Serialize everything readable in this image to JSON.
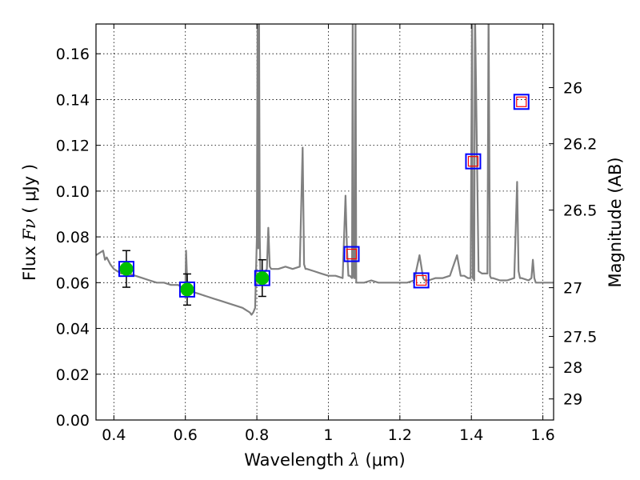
{
  "chart_data": {
    "type": "scatter",
    "xlabel": {
      "prefix": "Wavelength  ",
      "symbol": "λ",
      "suffix": " (μm)"
    },
    "ylabel": {
      "prefix": "Flux  ",
      "symbol": "Fν",
      "suffix": "  ( μJy )"
    },
    "y2label": "Magnitude (AB)",
    "xlim": [
      0.35,
      1.63
    ],
    "ylim": [
      0.0,
      0.173
    ],
    "grid": true,
    "x_ticks": [
      {
        "value": 0.4,
        "label": "0.4"
      },
      {
        "value": 0.6,
        "label": "0.6"
      },
      {
        "value": 0.8,
        "label": "0.8"
      },
      {
        "value": 1.0,
        "label": "1"
      },
      {
        "value": 1.2,
        "label": "1.2"
      },
      {
        "value": 1.4,
        "label": "1.4"
      },
      {
        "value": 1.6,
        "label": "1.6"
      }
    ],
    "y_ticks": [
      {
        "value": 0.0,
        "label": "0.00"
      },
      {
        "value": 0.02,
        "label": "0.02"
      },
      {
        "value": 0.04,
        "label": "0.04"
      },
      {
        "value": 0.06,
        "label": "0.06"
      },
      {
        "value": 0.08,
        "label": "0.08"
      },
      {
        "value": 0.1,
        "label": "0.10"
      },
      {
        "value": 0.12,
        "label": "0.12"
      },
      {
        "value": 0.14,
        "label": "0.14"
      },
      {
        "value": 0.16,
        "label": "0.16"
      }
    ],
    "y2_ticks": [
      {
        "flux": 0.1452,
        "label": "26"
      },
      {
        "flux": 0.1207,
        "label": "26.2"
      },
      {
        "flux": 0.0917,
        "label": "26.5"
      },
      {
        "flux": 0.0578,
        "label": "27"
      },
      {
        "flux": 0.0365,
        "label": "27.5"
      },
      {
        "flux": 0.023,
        "label": "28"
      },
      {
        "flux": 0.0092,
        "label": "29"
      }
    ],
    "series": [
      {
        "marker": "model-spectrum",
        "style": "line",
        "color": "#808080",
        "x": [
          0.35,
          0.37,
          0.375,
          0.38,
          0.39,
          0.4,
          0.42,
          0.44,
          0.46,
          0.48,
          0.5,
          0.52,
          0.54,
          0.56,
          0.58,
          0.6,
          0.602,
          0.605,
          0.608,
          0.61,
          0.62,
          0.64,
          0.66,
          0.68,
          0.7,
          0.72,
          0.74,
          0.76,
          0.77,
          0.78,
          0.785,
          0.79,
          0.795,
          0.8,
          0.802,
          0.804,
          0.806,
          0.808,
          0.81,
          0.82,
          0.828,
          0.832,
          0.836,
          0.84,
          0.86,
          0.88,
          0.9,
          0.92,
          0.928,
          0.932,
          0.936,
          0.94,
          0.96,
          0.98,
          1.0,
          1.02,
          1.04,
          1.048,
          1.052,
          1.056,
          1.06,
          1.066,
          1.068,
          1.07,
          1.072,
          1.074,
          1.076,
          1.078,
          1.08,
          1.1,
          1.12,
          1.14,
          1.16,
          1.18,
          1.2,
          1.22,
          1.24,
          1.255,
          1.26,
          1.265,
          1.27,
          1.28,
          1.3,
          1.32,
          1.34,
          1.36,
          1.37,
          1.38,
          1.39,
          1.398,
          1.402,
          1.404,
          1.406,
          1.408,
          1.41,
          1.42,
          1.43,
          1.44,
          1.445,
          1.448,
          1.452,
          1.455,
          1.46,
          1.48,
          1.5,
          1.52,
          1.528,
          1.532,
          1.536,
          1.54,
          1.56,
          1.568,
          1.572,
          1.576,
          1.58,
          1.6,
          1.63
        ],
        "values": [
          0.072,
          0.074,
          0.07,
          0.071,
          0.068,
          0.066,
          0.064,
          0.064,
          0.063,
          0.062,
          0.061,
          0.06,
          0.06,
          0.059,
          0.059,
          0.057,
          0.074,
          0.06,
          0.058,
          0.057,
          0.056,
          0.055,
          0.054,
          0.053,
          0.052,
          0.051,
          0.05,
          0.049,
          0.048,
          0.047,
          0.046,
          0.047,
          0.049,
          0.08,
          0.18,
          0.075,
          0.18,
          0.08,
          0.063,
          0.064,
          0.066,
          0.084,
          0.067,
          0.066,
          0.066,
          0.067,
          0.066,
          0.067,
          0.119,
          0.068,
          0.066,
          0.066,
          0.065,
          0.064,
          0.063,
          0.063,
          0.062,
          0.098,
          0.075,
          0.063,
          0.063,
          0.062,
          0.18,
          0.063,
          0.062,
          0.062,
          0.18,
          0.06,
          0.06,
          0.06,
          0.061,
          0.06,
          0.06,
          0.06,
          0.06,
          0.06,
          0.061,
          0.072,
          0.067,
          0.062,
          0.061,
          0.061,
          0.062,
          0.062,
          0.063,
          0.072,
          0.063,
          0.063,
          0.062,
          0.062,
          0.18,
          0.062,
          0.062,
          0.061,
          0.18,
          0.065,
          0.064,
          0.064,
          0.064,
          0.18,
          0.063,
          0.062,
          0.062,
          0.061,
          0.061,
          0.062,
          0.104,
          0.065,
          0.062,
          0.062,
          0.061,
          0.062,
          0.07,
          0.062,
          0.06,
          0.06,
          0.06
        ]
      },
      {
        "marker": "observed-green-circle",
        "color": "#00c000",
        "x": [
          0.435,
          0.605,
          0.815
        ],
        "values": [
          0.066,
          0.057,
          0.062
        ],
        "yerr": [
          0.008,
          0.0068,
          0.008
        ]
      },
      {
        "marker": "blue-square",
        "color": "#0000ff",
        "x": [
          0.435,
          0.605,
          0.815,
          1.065,
          1.26,
          1.405,
          1.54
        ],
        "values": [
          0.066,
          0.057,
          0.062,
          0.0725,
          0.061,
          0.113,
          0.139
        ]
      },
      {
        "marker": "red-square",
        "color": "#ff0000",
        "x": [
          1.065,
          1.26,
          1.405,
          1.54
        ],
        "values": [
          0.0725,
          0.061,
          0.113,
          0.139
        ]
      }
    ]
  }
}
